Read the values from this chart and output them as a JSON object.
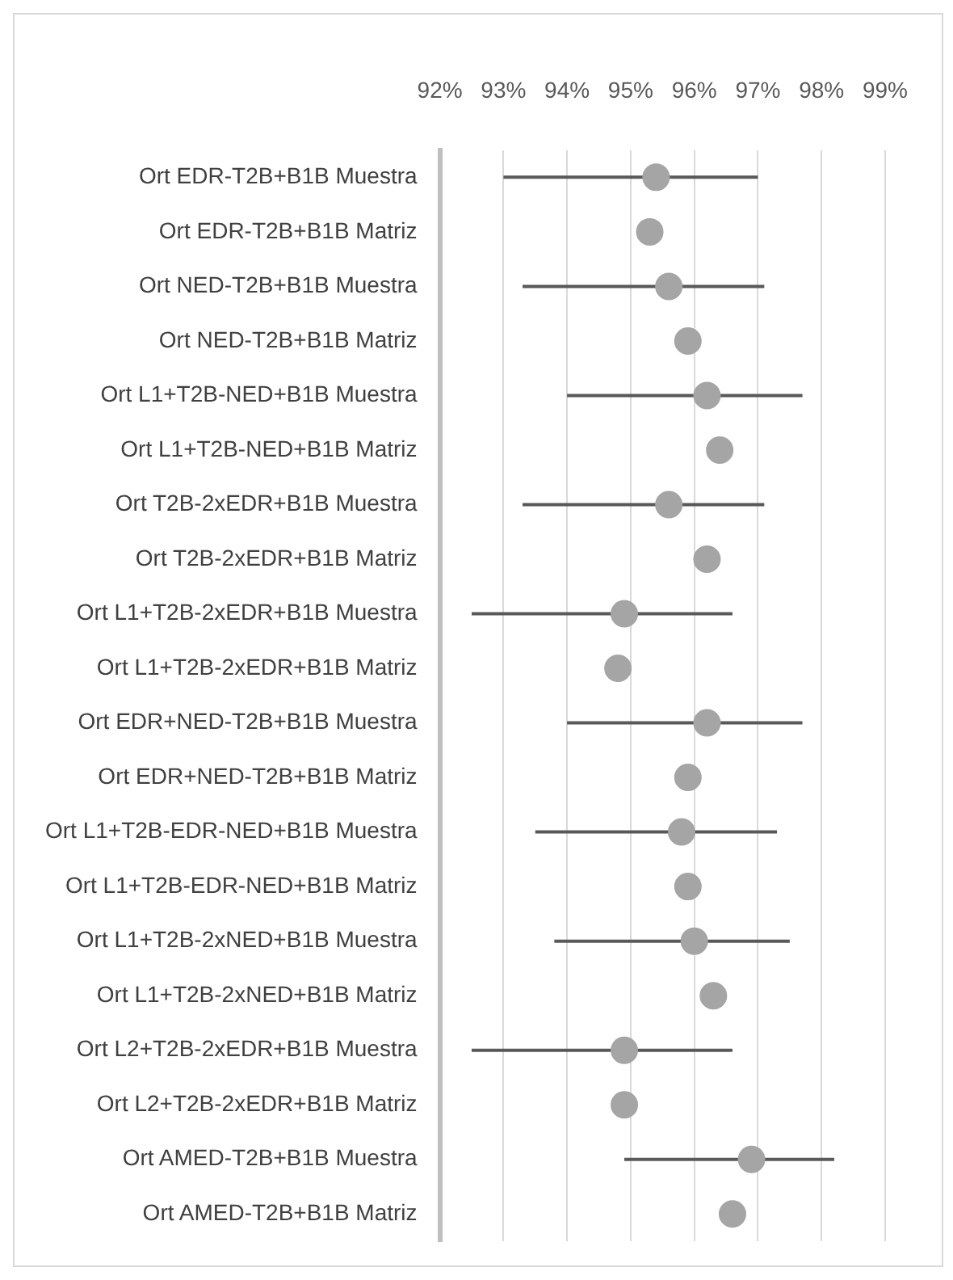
{
  "chart_data": {
    "type": "scatter",
    "orientation": "horizontal",
    "color": "#a5a5a5",
    "grid": "x",
    "legend": false,
    "marker": "circle",
    "categories": [
      "Ort EDR-T2B+B1B Muestra",
      "Ort EDR-T2B+B1B Matriz",
      "Ort NED-T2B+B1B Muestra",
      "Ort NED-T2B+B1B Matriz",
      "Ort L1+T2B-NED+B1B Muestra",
      "Ort L1+T2B-NED+B1B Matriz",
      "Ort T2B-2xEDR+B1B Muestra",
      "Ort T2B-2xEDR+B1B Matriz",
      "Ort L1+T2B-2xEDR+B1B Muestra",
      "Ort L1+T2B-2xEDR+B1B Matriz",
      "Ort EDR+NED-T2B+B1B Muestra",
      "Ort EDR+NED-T2B+B1B Matriz",
      "Ort L1+T2B-EDR-NED+B1B Muestra",
      "Ort L1+T2B-EDR-NED+B1B Matriz",
      "Ort L1+T2B-2xNED+B1B Muestra",
      "Ort L1+T2B-2xNED+B1B Matriz",
      "Ort L2+T2B-2xEDR+B1B Muestra",
      "Ort L2+T2B-2xEDR+B1B Matriz",
      "Ort AMED-T2B+B1B Muestra",
      "Ort AMED-T2B+B1B Matriz"
    ],
    "values": [
      95.4,
      95.3,
      95.6,
      95.9,
      96.2,
      96.4,
      95.6,
      96.2,
      94.9,
      94.8,
      96.2,
      95.9,
      95.8,
      95.9,
      96.0,
      96.3,
      94.9,
      94.9,
      96.9,
      96.6
    ],
    "errors": [
      [
        93.0,
        97.0
      ],
      null,
      [
        93.3,
        97.1
      ],
      null,
      [
        94.0,
        97.7
      ],
      null,
      [
        93.3,
        97.1
      ],
      null,
      [
        92.5,
        96.6
      ],
      null,
      [
        94.0,
        97.7
      ],
      null,
      [
        93.5,
        97.3
      ],
      null,
      [
        93.8,
        97.5
      ],
      null,
      [
        92.5,
        96.6
      ],
      null,
      [
        94.9,
        98.2
      ],
      null
    ],
    "xlim": [
      92,
      99
    ],
    "xticks": [
      {
        "value": 92,
        "label": "92%"
      },
      {
        "value": 93,
        "label": "93%"
      },
      {
        "value": 94,
        "label": "94%"
      },
      {
        "value": 95,
        "label": "95%"
      },
      {
        "value": 96,
        "label": "96%"
      },
      {
        "value": 97,
        "label": "97%"
      },
      {
        "value": 98,
        "label": "98%"
      },
      {
        "value": 99,
        "label": "99%"
      }
    ]
  }
}
